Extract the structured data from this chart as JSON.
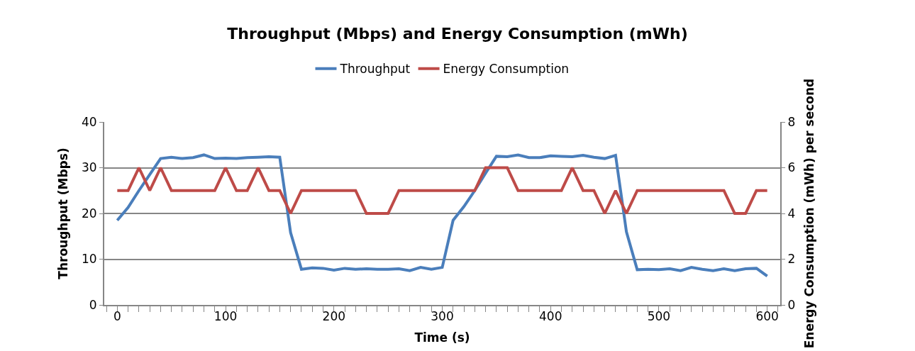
{
  "chart_data": {
    "type": "line",
    "title": "Throughput (Mbps) and Energy Consumption (mWh)",
    "xlabel": "Time (s)",
    "ylabel": "Throughput (Mbps)",
    "y2label": "Energy Consumption (mWh) per second",
    "x": [
      0,
      10,
      20,
      30,
      40,
      50,
      60,
      70,
      80,
      90,
      100,
      110,
      120,
      130,
      140,
      150,
      160,
      170,
      180,
      190,
      200,
      210,
      220,
      230,
      240,
      250,
      260,
      270,
      280,
      290,
      300,
      310,
      320,
      330,
      340,
      350,
      360,
      370,
      380,
      390,
      400,
      410,
      420,
      430,
      440,
      450,
      460,
      470,
      480,
      490,
      500,
      510,
      520,
      530,
      540,
      550,
      560,
      570,
      580,
      590,
      600
    ],
    "series": [
      {
        "name": "Throughput",
        "color": "#4a7ebb",
        "values": [
          18.5,
          21.3,
          25,
          28.5,
          32,
          32.3,
          32,
          32.2,
          32.8,
          32,
          32.1,
          32,
          32.2,
          32.3,
          32.4,
          32.3,
          15.8,
          7.8,
          8.1,
          8,
          7.6,
          8,
          7.8,
          7.9,
          7.8,
          7.8,
          7.9,
          7.5,
          8.2,
          7.8,
          8.2,
          18.5,
          21.5,
          25,
          28.8,
          32.5,
          32.4,
          32.8,
          32.2,
          32.2,
          32.6,
          32.5,
          32.4,
          32.7,
          32.3,
          32,
          32.7,
          16,
          7.7,
          7.8,
          7.7,
          7.9,
          7.5,
          8.2,
          7.8,
          7.5,
          7.9,
          7.5,
          7.9,
          8,
          6.3
        ]
      },
      {
        "name": "Energy Consumption",
        "color": "#be4b48",
        "axis": "y2",
        "values": [
          5,
          5,
          6,
          5,
          6,
          5,
          5,
          5,
          5,
          5,
          6,
          5,
          5,
          6,
          5,
          5,
          4,
          5,
          5,
          5,
          5,
          5,
          5,
          4,
          4,
          4,
          5,
          5,
          5,
          5,
          5,
          5,
          5,
          5,
          6,
          6,
          6,
          5,
          5,
          5,
          5,
          5,
          6,
          5,
          5,
          4,
          5,
          4,
          5,
          5,
          5,
          5,
          5,
          5,
          5,
          5,
          5,
          4,
          4,
          5,
          5
        ]
      }
    ],
    "xlim": [
      -12,
      612
    ],
    "xticks": [
      0,
      100,
      200,
      300,
      400,
      500,
      600
    ],
    "ylim": [
      0,
      40
    ],
    "yticks": [
      0,
      10,
      20,
      30,
      40
    ],
    "y2lim": [
      0,
      8
    ],
    "y2ticks": [
      0,
      2,
      4,
      6,
      8
    ],
    "grid": "y",
    "legend": "top",
    "marker": "none",
    "line_style": "solid"
  }
}
